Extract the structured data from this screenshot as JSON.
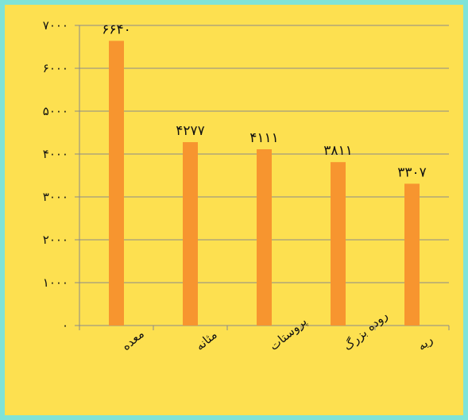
{
  "chart_data": {
    "type": "bar",
    "categories": [
      "معده",
      "مثانه",
      "پروستات",
      "روده بزرگ",
      "ریه"
    ],
    "values": [
      6640,
      4277,
      4111,
      3811,
      3307
    ],
    "value_labels": [
      "۶۶۴۰",
      "۴۲۷۷",
      "۴۱۱۱",
      "۳۸۱۱",
      "۳۳۰۷"
    ],
    "ylim": [
      0,
      7000
    ],
    "yticks": [
      0,
      1000,
      2000,
      3000,
      4000,
      5000,
      6000,
      7000
    ],
    "ytick_labels": [
      "۰",
      "۱۰۰۰",
      "۲۰۰۰",
      "۳۰۰۰",
      "۴۰۰۰",
      "۵۰۰۰",
      "۶۰۰۰",
      "۷۰۰۰"
    ],
    "grid": true,
    "legend": "none",
    "bar_color": "#f7952f",
    "grid_color": "#8a8a8a"
  }
}
